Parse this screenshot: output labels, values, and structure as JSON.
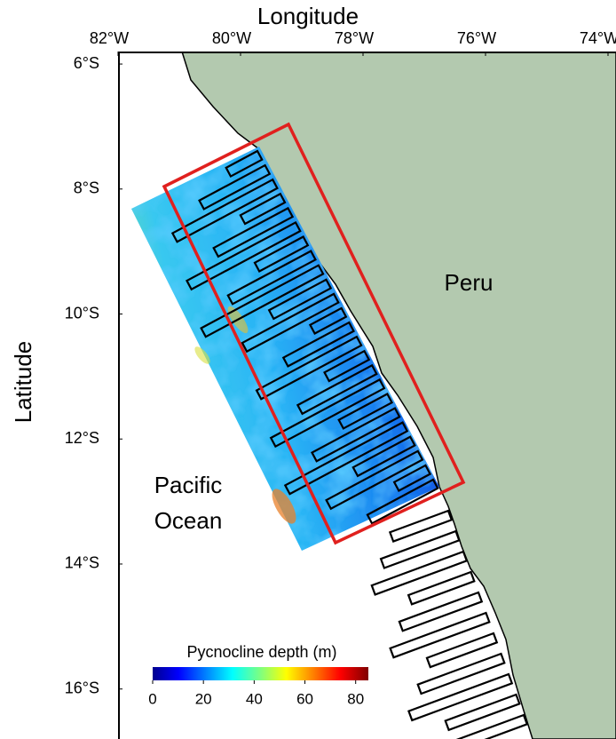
{
  "map": {
    "xlabel": "Longitude",
    "ylabel": "Latitude",
    "xlim": [
      -82,
      -74
    ],
    "ylim": [
      -16.8,
      -5.8
    ],
    "xticks": [
      {
        "value": -82,
        "label": "82°W"
      },
      {
        "value": -80,
        "label": "80°W"
      },
      {
        "value": -78,
        "label": "78°W"
      },
      {
        "value": -76,
        "label": "76°W"
      },
      {
        "value": -74,
        "label": "74°W"
      }
    ],
    "yticks": [
      {
        "value": -6,
        "label": "6°S"
      },
      {
        "value": -8,
        "label": "8°S"
      },
      {
        "value": -10,
        "label": "10°S"
      },
      {
        "value": -12,
        "label": "12°S"
      },
      {
        "value": -14,
        "label": "14°S"
      },
      {
        "value": -16,
        "label": "16°S"
      }
    ],
    "land_label": "Peru",
    "ocean_label": [
      "Pacific",
      "Ocean"
    ],
    "colorbar": {
      "label": "Pycnocline depth (m)",
      "lim": [
        0,
        85
      ],
      "ticks": [
        0,
        20,
        40,
        60,
        80
      ]
    }
  }
}
